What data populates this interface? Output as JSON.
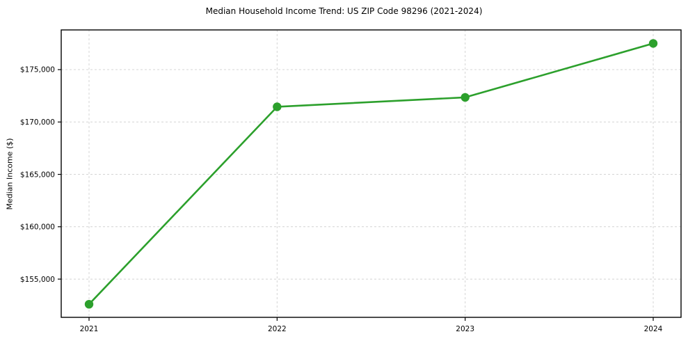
{
  "chart_data": {
    "type": "line",
    "title": "Median Household Income Trend: US ZIP Code 98296 (2021-2024)",
    "xlabel": "",
    "ylabel": "Median Income ($)",
    "x": [
      2021,
      2022,
      2023,
      2024
    ],
    "series": [
      {
        "name": "Median Household Income",
        "values": [
          152600,
          171450,
          172350,
          177500
        ],
        "color": "#2ca02c",
        "marker": "circle"
      }
    ],
    "xtick_labels": [
      "2021",
      "2022",
      "2023",
      "2024"
    ],
    "ytick_labels": [
      "$155,000",
      "$160,000",
      "$165,000",
      "$170,000",
      "$175,000"
    ],
    "yticks": [
      155000,
      160000,
      165000,
      170000,
      175000
    ],
    "ylim": [
      151350,
      178790
    ],
    "grid": true,
    "grid_style": "dashed",
    "grid_color": "#d4d4d4",
    "legend_position": "none",
    "background_color": "#ffffff",
    "spine_color": "#000000"
  }
}
